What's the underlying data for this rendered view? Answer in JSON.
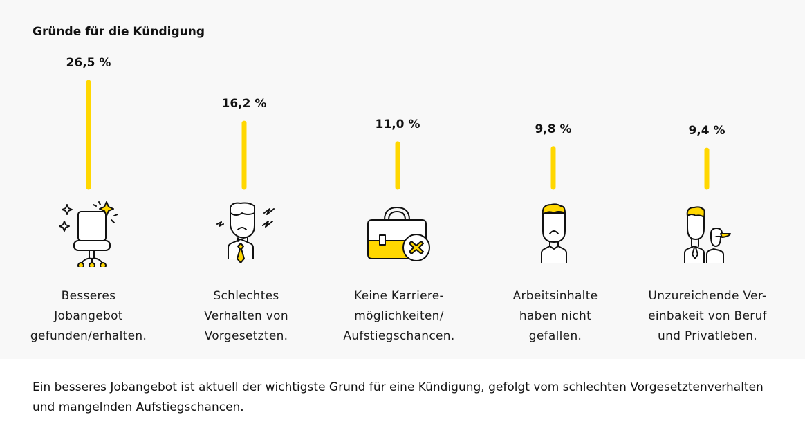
{
  "chart_data": {
    "type": "bar",
    "title": "Gründe für die Kündigung",
    "xlabel": "",
    "ylabel": "",
    "ylim": [
      0,
      26.5
    ],
    "grid": false,
    "legend": "none",
    "categories": [
      "Besseres Jobangebot gefunden/erhalten.",
      "Schlechtes Verhalten von Vorgesetzten.",
      "Keine Karrieremöglichkeiten/ Aufstiegschancen.",
      "Arbeitsinhalte haben nicht gefallen.",
      "Unzureichende Vereinbakeit von Beruf und Privatleben."
    ],
    "values": [
      26.5,
      16.2,
      11.0,
      9.8,
      9.4
    ],
    "value_labels": [
      "26,5 %",
      "16,2 %",
      "11,0 %",
      "9,8 %",
      "9,4 %"
    ],
    "bar_color": "#ffd700"
  },
  "items": [
    {
      "icon": "office-chair-icon",
      "label_lines": [
        "Besseres",
        "Jobangebot",
        "gefunden/erhalten."
      ]
    },
    {
      "icon": "angry-boss-icon",
      "label_lines": [
        "Schlechtes",
        "Verhalten von",
        "Vorgesetzten."
      ]
    },
    {
      "icon": "briefcase-cross-icon",
      "label_lines": [
        "Keine Karriere-",
        "möglichkeiten/",
        "Aufstiegschancen."
      ]
    },
    {
      "icon": "sad-person-icon",
      "label_lines": [
        "Arbeitsinhalte",
        "haben nicht",
        "gefallen."
      ]
    },
    {
      "icon": "parent-child-icon",
      "label_lines": [
        "Unzureichende Ver-",
        "einbakeit von Beruf",
        "und Privatleben."
      ]
    }
  ],
  "footer": {
    "text": "Ein besseres Jobangebot ist aktuell der wichtigste Grund für eine Kündigung, gefolgt vom schlechten Vorgesetztenverhalten und mangelnden Aufstiegschancen."
  },
  "colors": {
    "accent": "#ffd700",
    "background": "#f8f8f8",
    "text": "#111111"
  }
}
